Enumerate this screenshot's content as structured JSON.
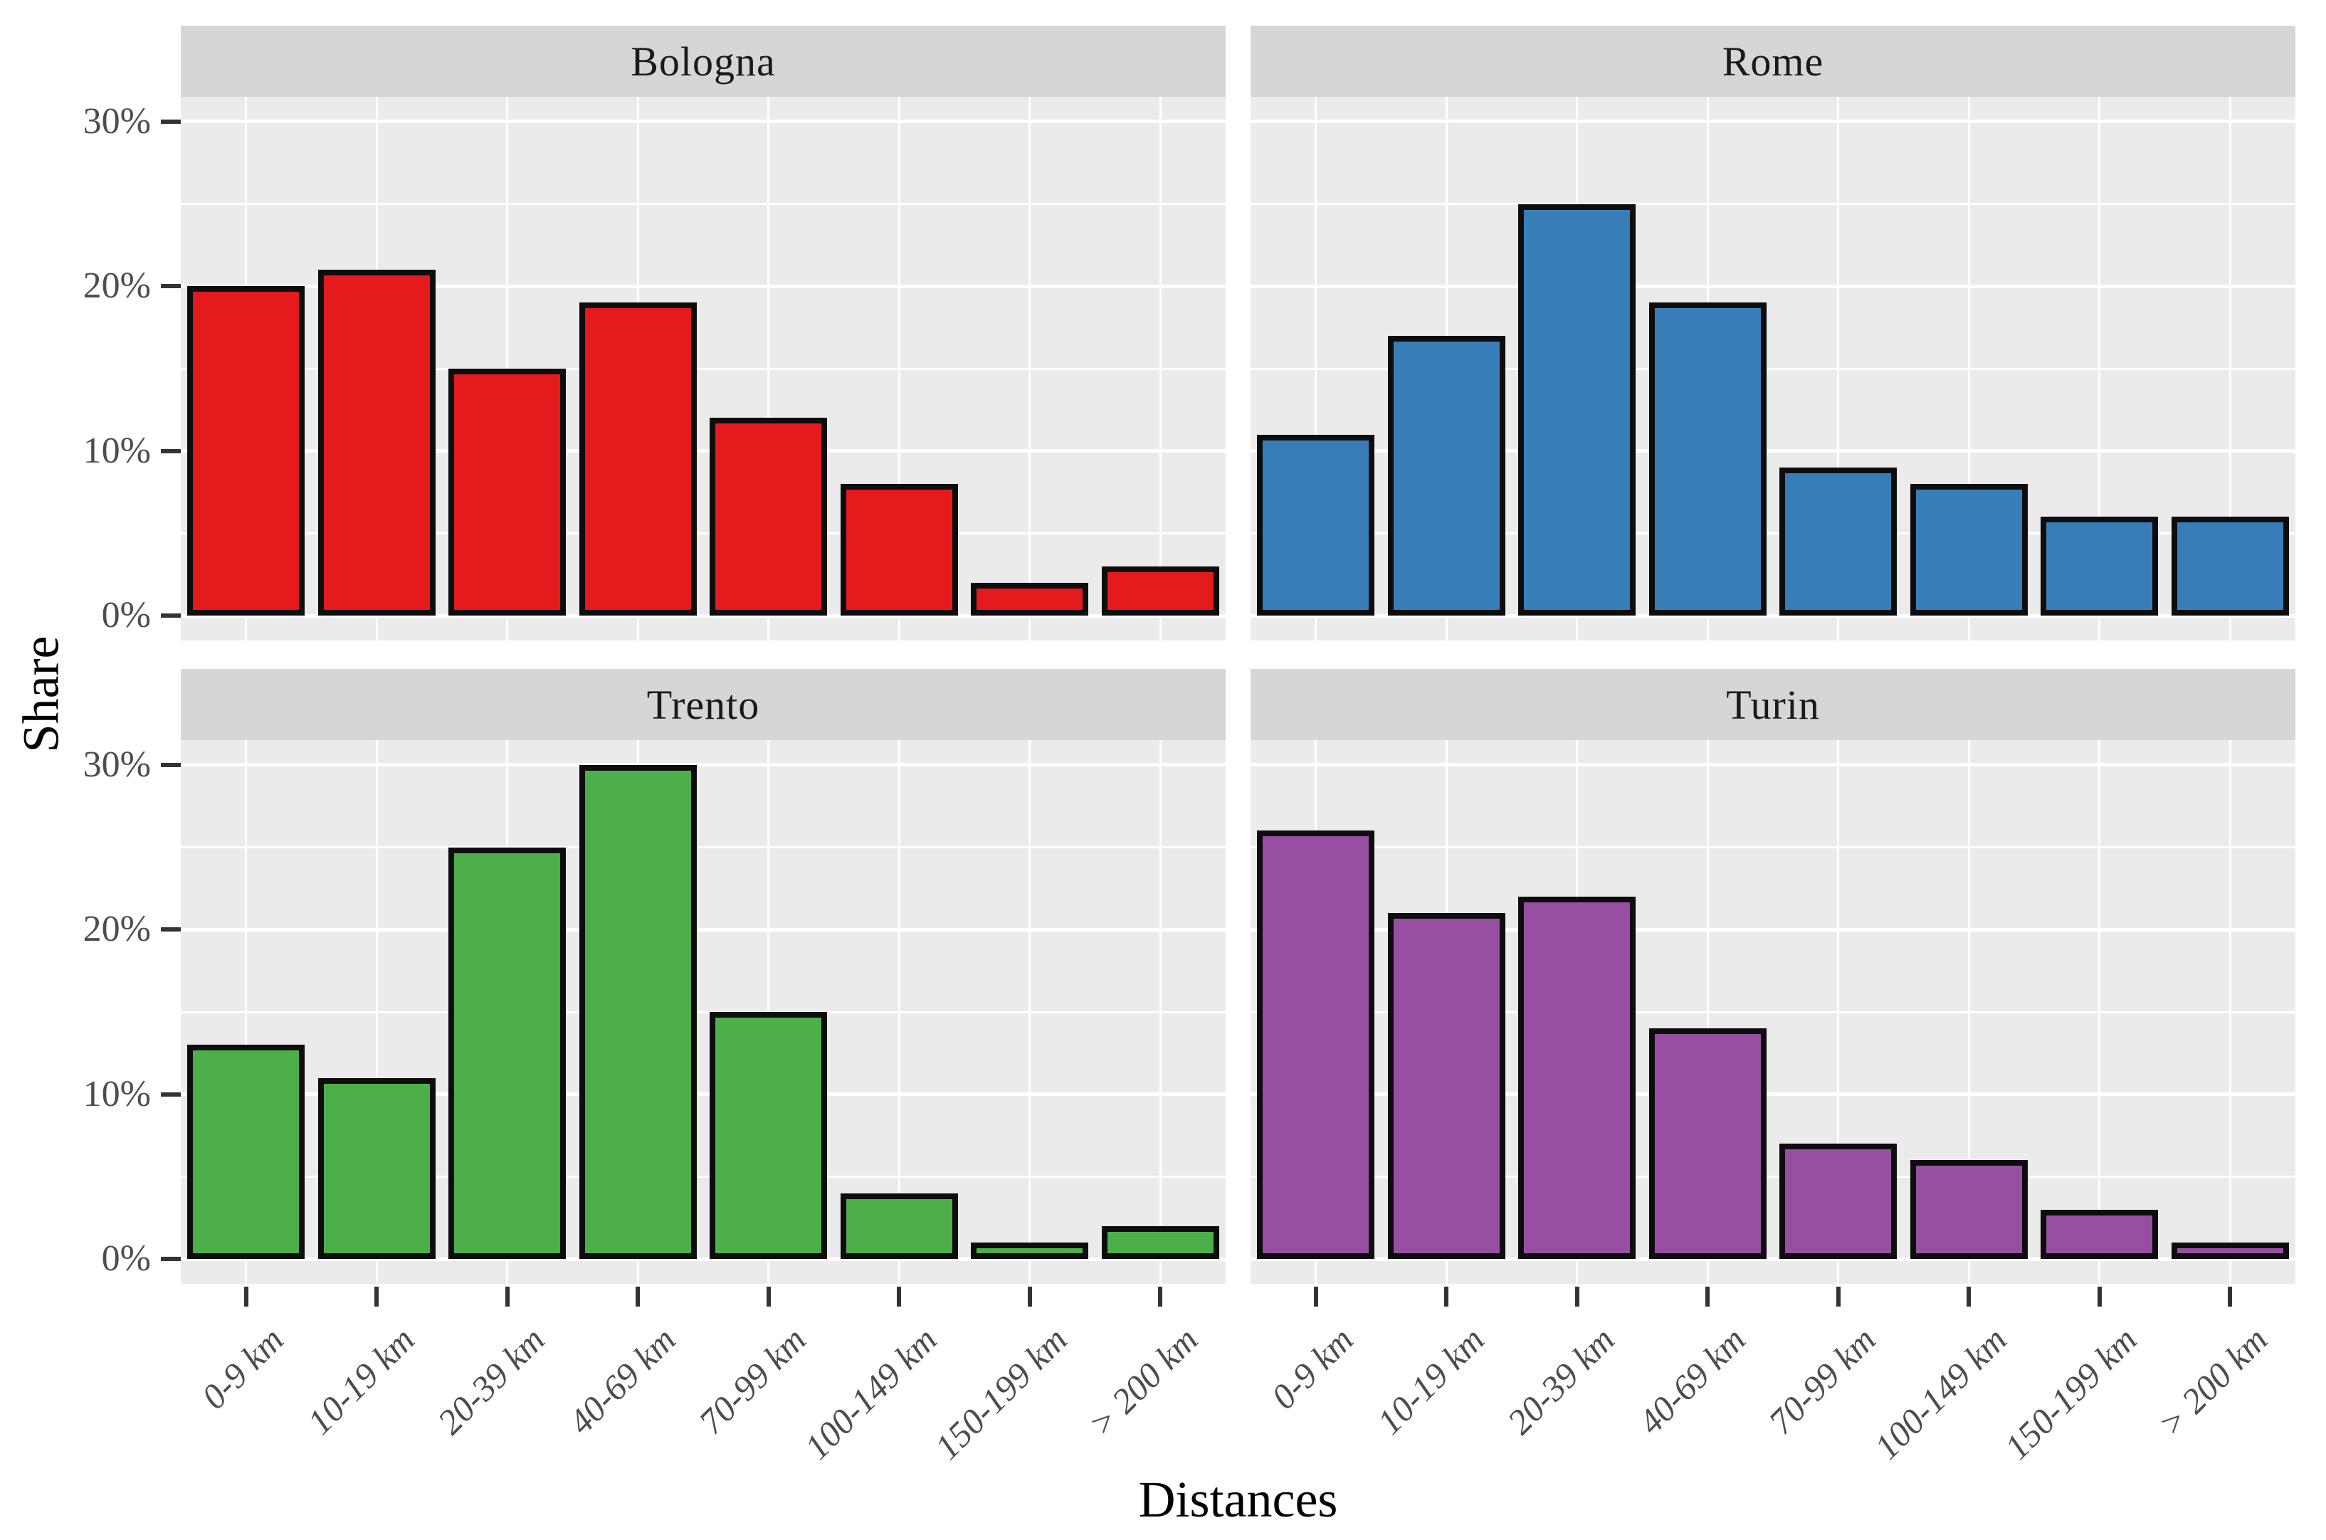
{
  "chart_data": {
    "type": "bar",
    "title": "",
    "xlabel": "Distances",
    "ylabel": "Share",
    "categories": [
      "0-9 km",
      "10-19 km",
      "20-39 km",
      "40-69 km",
      "70-99 km",
      "100-149 km",
      "150-199 km",
      "> 200 km"
    ],
    "y_tick_labels": [
      "0%",
      "10%",
      "20%",
      "30%"
    ],
    "y_major_breaks": [
      0,
      10,
      20,
      30
    ],
    "y_minor_breaks": [
      5,
      15,
      25
    ],
    "ylim": [
      -1.5,
      31.5
    ],
    "grid": "on",
    "legend": "none",
    "facet_layout": "2x2",
    "series": [
      {
        "name": "Bologna",
        "color": "#E41A1C",
        "values": [
          20,
          21,
          15,
          19,
          12,
          8,
          2,
          3
        ]
      },
      {
        "name": "Rome",
        "color": "#377EB8",
        "values": [
          11,
          17,
          25,
          19,
          9,
          8,
          6,
          6
        ]
      },
      {
        "name": "Trento",
        "color": "#4DAF4A",
        "values": [
          13,
          11,
          25,
          30,
          15,
          4,
          1,
          2
        ]
      },
      {
        "name": "Turin",
        "color": "#984EA3",
        "values": [
          26,
          21,
          22,
          14,
          7,
          6,
          3,
          1
        ]
      }
    ],
    "colors": {
      "panel_background": "#EBEBEB",
      "strip_background": "#D6D6D6",
      "gridline": "#FFFFFF",
      "bar_outline": "#0D0D0D",
      "tick_mark": "#333333",
      "tick_label": "#4D4D4D",
      "strip_text": "#1A1A1A",
      "axis_title": "#000000"
    }
  }
}
